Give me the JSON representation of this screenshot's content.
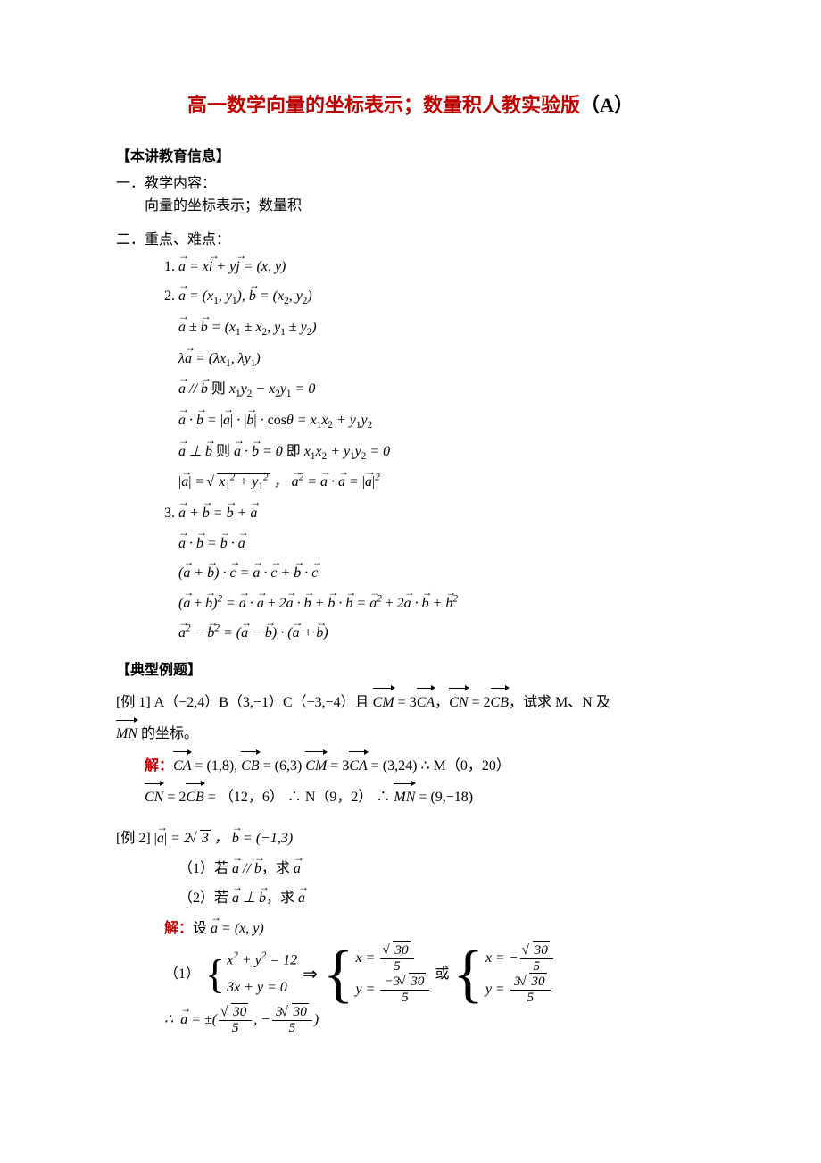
{
  "title_main": "高一数学向量的坐标表示；数量积人教实验版",
  "title_suffix": "（A）",
  "section1_head": "【本讲教育信息】",
  "sec1_line1": "一．教学内容：",
  "sec1_line2": "向量的坐标表示；数量积",
  "sec2_line1": "二．重点、难点：",
  "f1_label": "1.  ",
  "f2_label": "2.  ",
  "f3_label": "3.  ",
  "f1": "a = x i + y j = (x, y)",
  "f2a": "a = (x₁, y₁), b = (x₂, y₂)",
  "f2b": "a ± b = (x₁ ± x₂, y₁ ± y₂)",
  "f2c": "λa = (λx₁, λy₁)",
  "f2d_pre": "a // b",
  "f2d_mid": " 则 ",
  "f2d_post": "x₁y₂ − x₂y₁ = 0",
  "f2e": "a · b = |a| · |b| · cosθ = x₁x₂ + y₁y₂",
  "f2f_a": "a ⊥ b",
  "f2f_b": " 则 ",
  "f2f_c": "a · b = 0",
  "f2f_d": " 即 ",
  "f2f_e": "x₁x₂ + y₁y₂ = 0",
  "f2g_a": "|a| = ",
  "f2g_rad": "x₁² + y₁²",
  "f2g_b": " ， a² = a · a = |a|²",
  "f3a": "a + b = b + a",
  "f3b": "a · b = b · a",
  "f3c": "(a + b) · c = a · c + b · c",
  "f3d": "(a ± b)² = a · a ± 2a · b + b · b = a² ± 2a · b + b²",
  "f3e": "a² − b² = (a − b) · (a + b)",
  "section2_head": "【典型例题】",
  "ex1_label": "[例 1]      ",
  "ex1_a": "A（−2,4）B（3,−1）C（−3,−4）且 ",
  "ex1_b": " = 3",
  "ex1_c": "，",
  "ex1_d": " = 2",
  "ex1_e": "，试求 M、N 及",
  "ex1_f": " 的坐标。",
  "CM": "CM",
  "CA": "CA",
  "CN": "CN",
  "CB": "CB",
  "MN": "MN",
  "ex1_sol_label": "解：",
  "ex1_sol_1a": " = (1,8), ",
  "ex1_sol_1b": " = (6,3)     ",
  "ex1_sol_1c": " = 3",
  "ex1_sol_1d": " = (3,24)      ∴  M（0，20）",
  "ex1_sol_2a": " = 2",
  "ex1_sol_2b": " = （12，6）      ∴  N（9，2）       ∴  ",
  "ex1_sol_2c": " = (9,−18)",
  "ex2_label": "[例 2]  ",
  "ex2_a_pre": "|a| = 2",
  "ex2_a_rad": "3",
  "ex2_a_post": " ， b = (−1,3)",
  "ex2_1": "（1）若 a // b，求 a",
  "ex2_2": "（2）若 a ⊥ b，求 a",
  "ex2_sol_label": "解：",
  "ex2_sol_set": "设 a = (x, y)",
  "ex2_p1_label": "（1）",
  "sys1_r1": "x² + y² = 12",
  "sys1_r2": "3x + y = 0",
  "impl": " ⇒ ",
  "or": " 或 ",
  "sol1_x_num": "√30",
  "sol1_x_den": "5",
  "sol1_y_num": "−3√30",
  "sol1_y_den": "5",
  "sol2_x_num": "√30",
  "sol2_x_den": "5",
  "sol2_y_num": "3√30",
  "sol2_y_den": "5",
  "xeq": "x = ",
  "yeq": "y = ",
  "xeqn": "x = −",
  "therefore": "∴  a = ±(",
  "comma_neg": ", −",
  "close": ")",
  "colors": {
    "red": "#C00000",
    "text": "#000000",
    "bg": "#ffffff"
  }
}
